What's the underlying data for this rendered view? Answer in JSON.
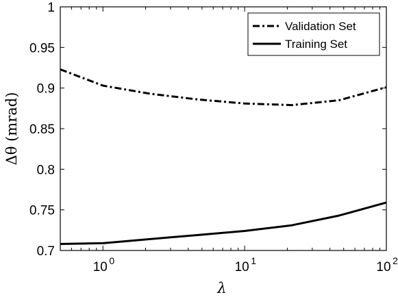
{
  "chart_data": {
    "type": "line",
    "xscale": "log",
    "xlim": [
      0.5,
      100
    ],
    "ylim": [
      0.7,
      1.0
    ],
    "xlabel": "λ",
    "ylabel": "Δθ (mrad)",
    "x_ticks": [
      {
        "value": 1,
        "base": "10",
        "exp": "0"
      },
      {
        "value": 10,
        "base": "10",
        "exp": "1"
      },
      {
        "value": 100,
        "base": "10",
        "exp": "2"
      }
    ],
    "y_ticks": [
      {
        "value": 0.7,
        "label": "0.7"
      },
      {
        "value": 0.75,
        "label": "0.75"
      },
      {
        "value": 0.8,
        "label": "0.8"
      },
      {
        "value": 0.85,
        "label": "0.85"
      },
      {
        "value": 0.9,
        "label": "0.9"
      },
      {
        "value": 0.95,
        "label": "0.95"
      },
      {
        "value": 1.0,
        "label": "1"
      }
    ],
    "legend_position": "top-right",
    "grid": false,
    "series": [
      {
        "name": "Validation Set",
        "style": "dash-dot",
        "color": "#000000",
        "x": [
          0.5,
          1.0,
          2.15,
          4.64,
          10.0,
          21.5,
          46.4,
          100.0
        ],
        "values": [
          0.923,
          0.903,
          0.893,
          0.886,
          0.881,
          0.879,
          0.885,
          0.901
        ]
      },
      {
        "name": "Training Set",
        "style": "solid",
        "color": "#000000",
        "x": [
          0.5,
          1.0,
          2.15,
          4.64,
          10.0,
          21.5,
          46.4,
          100.0
        ],
        "values": [
          0.708,
          0.709,
          0.714,
          0.719,
          0.724,
          0.731,
          0.743,
          0.759
        ]
      }
    ]
  }
}
